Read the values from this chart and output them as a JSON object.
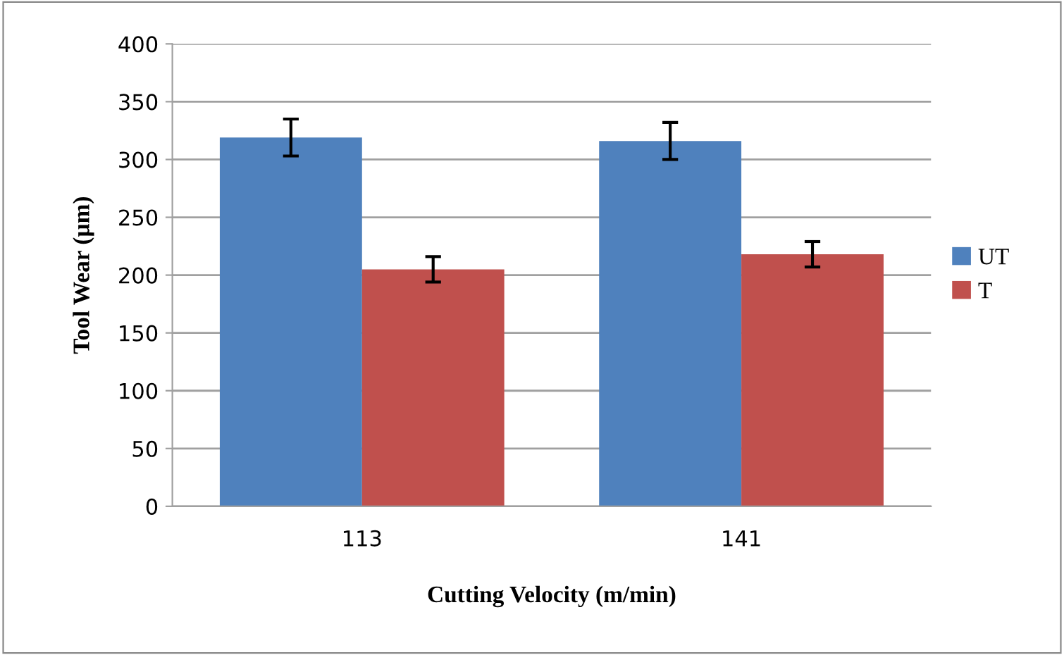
{
  "chart_data": {
    "type": "bar",
    "xlabel": "Cutting Velocity (m/min)",
    "ylabel": "Tool Wear (µm)",
    "categories": [
      "113",
      "141"
    ],
    "series": [
      {
        "name": "UT",
        "color": "#4f81bd",
        "values": [
          319,
          316
        ],
        "errors": [
          16,
          16
        ]
      },
      {
        "name": "T",
        "color": "#c0504d",
        "values": [
          205,
          218
        ],
        "errors": [
          11,
          11
        ]
      }
    ],
    "ylim": [
      0,
      400
    ],
    "yticks": [
      0,
      50,
      100,
      150,
      200,
      250,
      300,
      350,
      400
    ],
    "grid": "y",
    "legend": "right"
  }
}
